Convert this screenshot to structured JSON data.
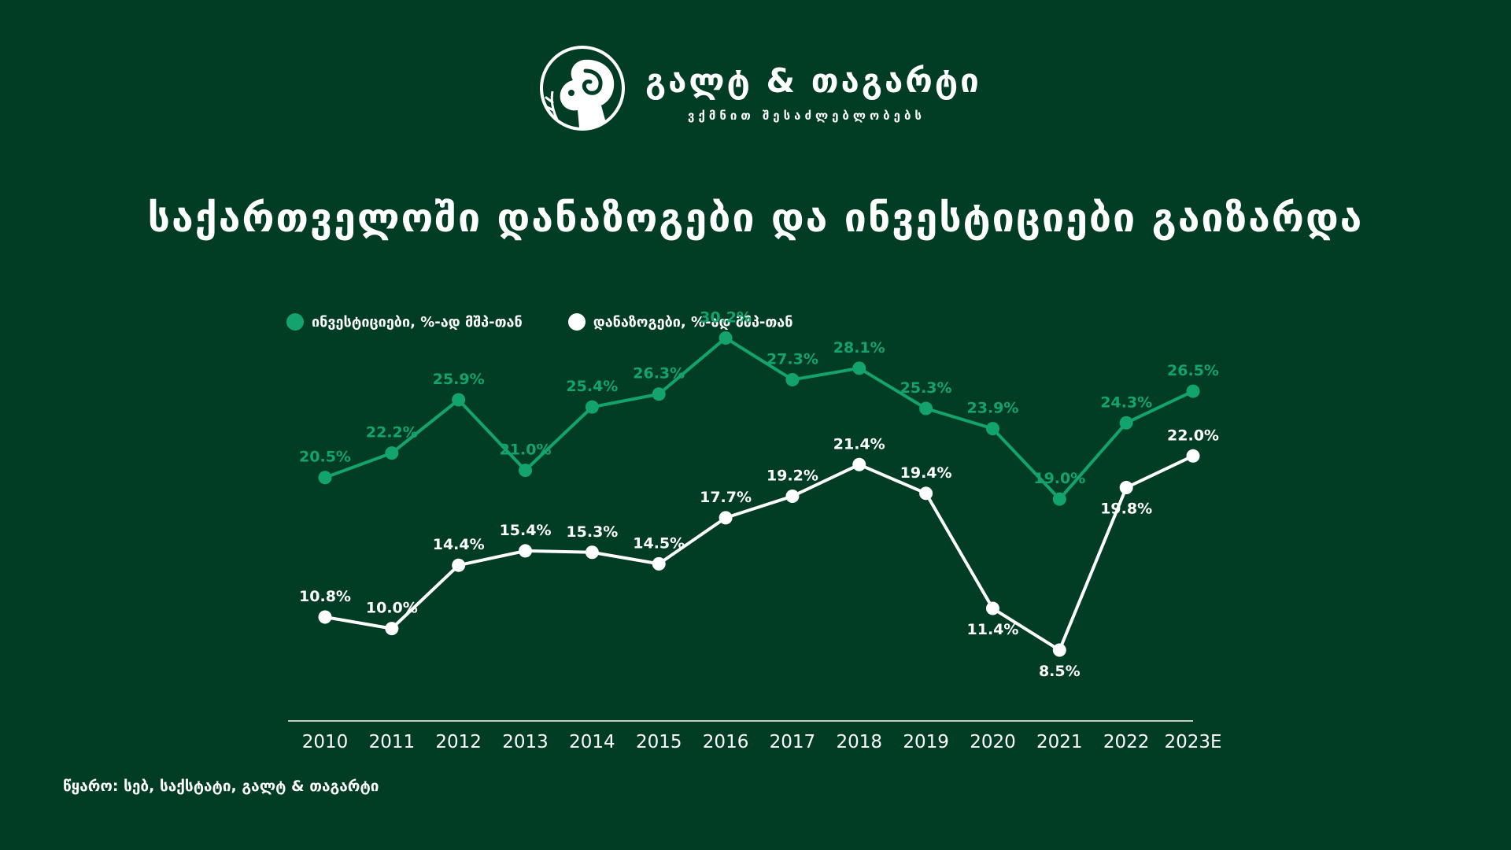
{
  "brand": {
    "name": "გალტ & თაგარტი",
    "tagline": "ვქმნით შესაძლებლობებს"
  },
  "colors": {
    "background": "#013d24",
    "investments": "#12a36f",
    "savings": "#ffffff",
    "axis": "#ffffff"
  },
  "chart_data": {
    "type": "line",
    "title": "საქართველოში დანაზოგები და ინვესტიციები გაიზარდა",
    "xlabel": "",
    "ylabel": "",
    "legend_position": "top-left",
    "grid": false,
    "ylim": [
      5,
      34
    ],
    "categories": [
      "2010",
      "2011",
      "2012",
      "2013",
      "2014",
      "2015",
      "2016",
      "2017",
      "2018",
      "2019",
      "2020",
      "2021",
      "2022",
      "2023E"
    ],
    "series": [
      {
        "name": "ინვესტიციები, %-ად მშპ-თან",
        "values": [
          20.5,
          22.2,
          25.9,
          21.0,
          25.4,
          26.3,
          30.2,
          27.3,
          28.1,
          25.3,
          23.9,
          19.0,
          24.3,
          26.5
        ],
        "labels": [
          "20.5%",
          "22.2%",
          "25.9%",
          "21.0%",
          "25.4%",
          "26.3%",
          "30.2%",
          "27.3%",
          "28.1%",
          "25.3%",
          "23.9%",
          "19.0%",
          "24.3%",
          "26.5%"
        ]
      },
      {
        "name": "დანაზოგები, %-ად მშპ-თან",
        "values": [
          10.8,
          10.0,
          14.4,
          15.4,
          15.3,
          14.5,
          17.7,
          19.2,
          21.4,
          19.4,
          11.4,
          8.5,
          19.8,
          22.0
        ],
        "labels": [
          "10.8%",
          "10.0%",
          "14.4%",
          "15.4%",
          "15.3%",
          "14.5%",
          "17.7%",
          "19.2%",
          "21.4%",
          "19.4%",
          "11.4%",
          "8.5%",
          "19.8%",
          "22.0%"
        ]
      }
    ]
  },
  "source": "წყარო: სებ, საქსტატი, გალტ & თაგარტი"
}
